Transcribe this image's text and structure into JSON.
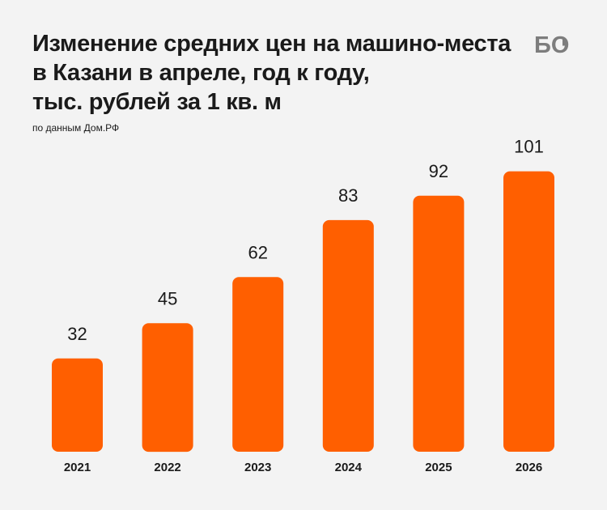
{
  "header": {
    "title_lines": [
      "Изменение средних цен на машино-места",
      "в Казани в апреле, год к году,",
      "тыс. рублей за 1 кв. м"
    ],
    "source": "по данным Дом.РФ",
    "logo_text": "БО"
  },
  "colors": {
    "bar": "#ff5f00",
    "background": "#f3f3f3",
    "text": "#1a1a1a",
    "logo": "#7d7d7d"
  },
  "chart_data": {
    "type": "bar",
    "title": "Изменение средних цен на машино-места в Казани в апреле, год к году, тыс. рублей за 1 кв. м",
    "subtitle": "по данным Дом.РФ",
    "xlabel": "",
    "ylabel": "",
    "categories": [
      "2021",
      "2022",
      "2023",
      "2024",
      "2025",
      "2026"
    ],
    "values": [
      32,
      45,
      62,
      83,
      92,
      101
    ],
    "data_labels": true,
    "grid": false,
    "legend": "none"
  }
}
